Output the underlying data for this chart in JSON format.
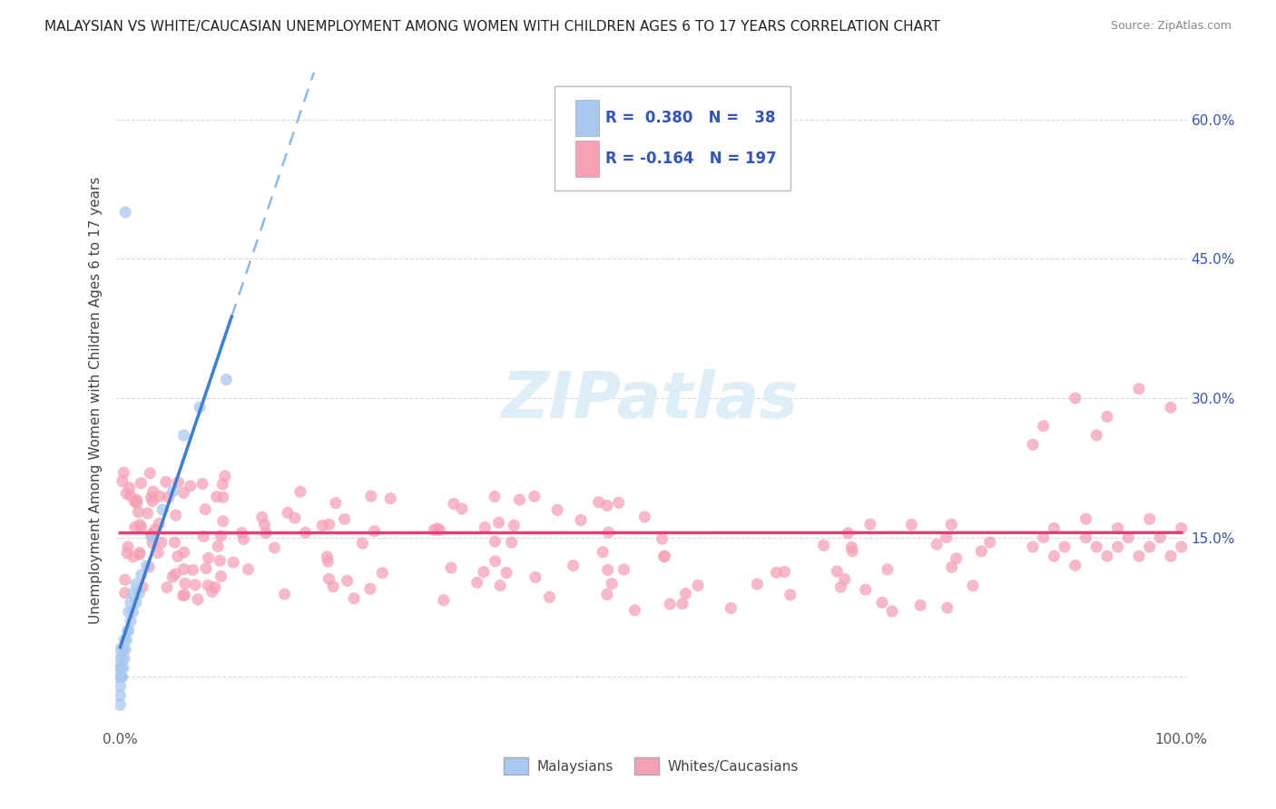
{
  "title": "MALAYSIAN VS WHITE/CAUCASIAN UNEMPLOYMENT AMONG WOMEN WITH CHILDREN AGES 6 TO 17 YEARS CORRELATION CHART",
  "source": "Source: ZipAtlas.com",
  "ylabel": "Unemployment Among Women with Children Ages 6 to 17 years",
  "xlim": [
    -0.005,
    1.005
  ],
  "ylim": [
    -0.055,
    0.65
  ],
  "yticks": [
    0.0,
    0.15,
    0.3,
    0.45,
    0.6
  ],
  "yticklabels_right": [
    "",
    "15.0%",
    "30.0%",
    "45.0%",
    "60.0%"
  ],
  "xtick_left_label": "0.0%",
  "xtick_right_label": "100.0%",
  "color_malaysian": "#a8c8f0",
  "color_white": "#f5a0b5",
  "line_color_malaysian": "#3a7fd5",
  "line_color_white": "#e0407a",
  "dash_color": "#90b8e0",
  "background_color": "#ffffff",
  "grid_color": "#d8d8d8",
  "watermark_color": "#ddeef8",
  "title_fontsize": 11,
  "source_fontsize": 9,
  "tick_fontsize": 11,
  "ylabel_fontsize": 11,
  "legend_r1": "R =  0.380",
  "legend_n1": "N =  38",
  "legend_r2": "R = -0.164",
  "legend_n2": "N = 197",
  "legend_text_color": "#3355bb",
  "legend_fontsize": 12
}
